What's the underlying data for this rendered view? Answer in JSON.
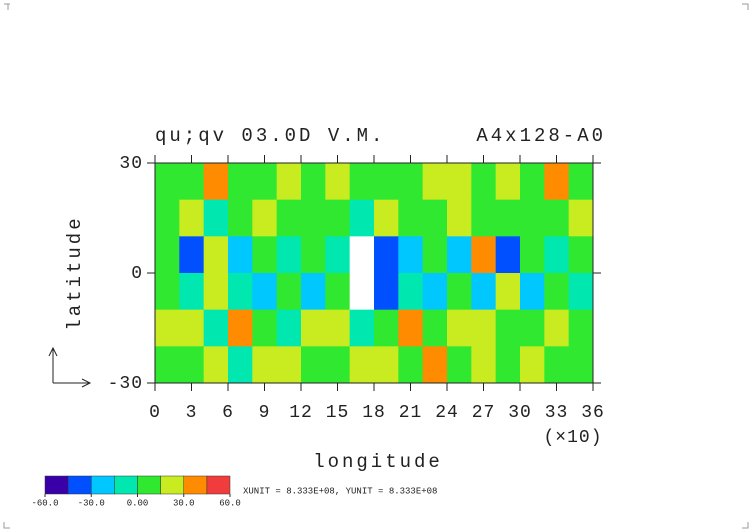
{
  "chart_data": {
    "type": "heatmap",
    "title": "qu;qv 03.0D V.M.",
    "subtitle": "A4x128-A0",
    "xlabel": "longitude",
    "xscale_note": "(×10)",
    "ylabel": "latitude",
    "unit_note": "XUNIT = 8.333E+08, YUNIT = 8.333E+08",
    "xlim": [
      0,
      360
    ],
    "ylim": [
      -30,
      30
    ],
    "xticks": [
      {
        "value": 0,
        "label": "0"
      },
      {
        "value": 30,
        "label": "3"
      },
      {
        "value": 60,
        "label": "6"
      },
      {
        "value": 90,
        "label": "9"
      },
      {
        "value": 120,
        "label": "12"
      },
      {
        "value": 150,
        "label": "15"
      },
      {
        "value": 180,
        "label": "18"
      },
      {
        "value": 210,
        "label": "21"
      },
      {
        "value": 240,
        "label": "24"
      },
      {
        "value": 270,
        "label": "27"
      },
      {
        "value": 300,
        "label": "30"
      },
      {
        "value": 330,
        "label": "33"
      },
      {
        "value": 360,
        "label": "36"
      }
    ],
    "yticks": [
      -30,
      0,
      30
    ],
    "x": [
      10,
      30,
      50,
      70,
      90,
      110,
      130,
      150,
      170,
      190,
      210,
      230,
      250,
      270,
      290,
      310,
      330,
      350
    ],
    "y": [
      25,
      15,
      5,
      -5,
      -15,
      -25
    ],
    "z": [
      [
        10,
        5,
        35,
        12,
        8,
        20,
        5,
        15,
        10,
        12,
        8,
        25,
        15,
        5,
        20,
        10,
        30,
        8
      ],
      [
        5,
        15,
        -5,
        10,
        20,
        5,
        12,
        8,
        -10,
        15,
        5,
        10,
        20,
        8,
        12,
        5,
        10,
        15
      ],
      [
        10,
        -35,
        20,
        -20,
        5,
        -10,
        10,
        -15,
        70,
        -40,
        -20,
        5,
        -30,
        30,
        -35,
        10,
        -15,
        5
      ],
      [
        5,
        -10,
        15,
        -15,
        -20,
        10,
        -25,
        5,
        70,
        -45,
        -10,
        -20,
        5,
        -20,
        20,
        -30,
        10,
        -15
      ],
      [
        15,
        20,
        -5,
        30,
        10,
        -10,
        15,
        20,
        -15,
        10,
        35,
        5,
        15,
        20,
        5,
        10,
        15,
        8
      ],
      [
        10,
        5,
        20,
        -5,
        15,
        25,
        10,
        5,
        15,
        20,
        10,
        30,
        5,
        15,
        10,
        20,
        5,
        12
      ]
    ],
    "levels": [
      -60,
      -45,
      -30,
      -15,
      0,
      15,
      30,
      45,
      60
    ],
    "colors": [
      "#3a00a8",
      "#0050ff",
      "#00c8ff",
      "#00e8b0",
      "#30e830",
      "#c8ec20",
      "#ff8c00",
      "#f03c3c"
    ],
    "colorbar_ticks": [
      {
        "value": -60,
        "label": "-60.0"
      },
      {
        "value": -30,
        "label": "-30.0"
      },
      {
        "value": 0,
        "label": "0.00"
      },
      {
        "value": 30,
        "label": "30.0"
      },
      {
        "value": 60,
        "label": "60.0"
      }
    ]
  }
}
